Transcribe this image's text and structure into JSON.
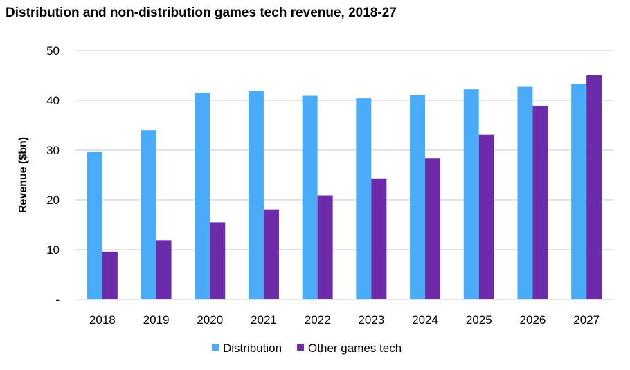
{
  "chart_data": {
    "type": "bar",
    "title": "Distribution and non-distribution games tech revenue, 2018-27",
    "xlabel": "",
    "ylabel": "Revenue ($bn)",
    "ylim": [
      0,
      50
    ],
    "yticks": [
      0,
      10,
      20,
      30,
      40,
      50
    ],
    "ytick_labels": [
      "-",
      "10",
      "20",
      "30",
      "40",
      "50"
    ],
    "grid": true,
    "legend": "bottom",
    "categories": [
      "2018",
      "2019",
      "2020",
      "2021",
      "2022",
      "2023",
      "2024",
      "2025",
      "2026",
      "2027"
    ],
    "series": [
      {
        "name": "Distribution",
        "color": "#4AABF8",
        "values": [
          29.6,
          34.0,
          41.5,
          41.9,
          40.9,
          40.4,
          41.1,
          42.2,
          42.7,
          43.2
        ]
      },
      {
        "name": "Other games tech",
        "color": "#6C2BA8",
        "values": [
          9.6,
          11.9,
          15.5,
          18.1,
          20.9,
          24.2,
          28.3,
          33.1,
          38.9,
          45.0
        ]
      }
    ]
  }
}
